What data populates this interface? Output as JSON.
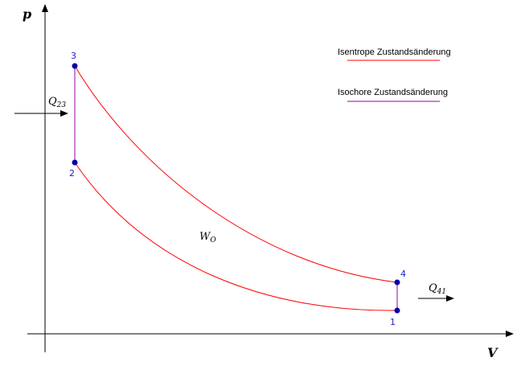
{
  "axes": {
    "x_label": "V",
    "y_label": "p"
  },
  "points": {
    "p1": "1",
    "p2": "2",
    "p3": "3",
    "p4": "4"
  },
  "labels": {
    "q23_main": "Q",
    "q23_sub": "23",
    "q41_main": "Q",
    "q41_sub": "41",
    "wo_main": "W",
    "wo_sub": "O"
  },
  "legend": {
    "isentropic": "Isentrope Zustandsänderung",
    "isochoric": "Isochore Zustandsänderung",
    "isentropic_color": "#ff0000",
    "isochoric_color": "#990099"
  },
  "colors": {
    "curve": "#ff0000",
    "isochore": "#990099",
    "point_fill": "#0000aa",
    "point_label": "#1a1acc"
  }
}
